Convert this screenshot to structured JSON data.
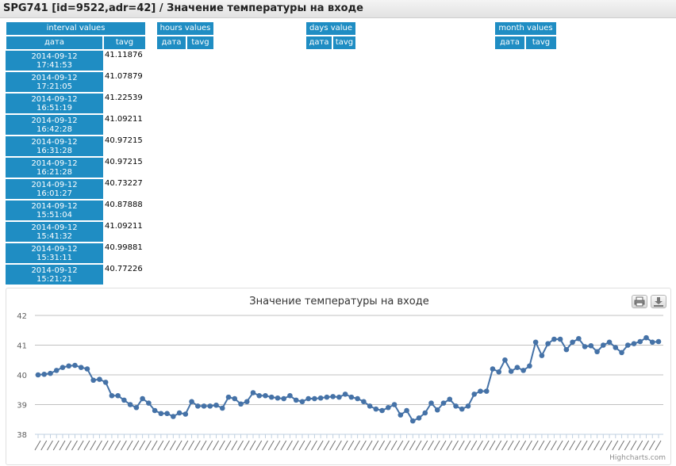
{
  "window": {
    "title": "SPG741 [id=9522,adr=42] / Значение температуры на входе"
  },
  "interval": {
    "title": "interval values",
    "col_date": "дата",
    "col_value": "tavg",
    "rows": [
      {
        "date": "2014-09-12",
        "time": "17:41:53",
        "value": "41.11876"
      },
      {
        "date": "2014-09-12",
        "time": "17:21:05",
        "value": "41.07879"
      },
      {
        "date": "2014-09-12",
        "time": "16:51:19",
        "value": "41.22539"
      },
      {
        "date": "2014-09-12",
        "time": "16:42:28",
        "value": "41.09211"
      },
      {
        "date": "2014-09-12",
        "time": "16:31:28",
        "value": "40.97215"
      },
      {
        "date": "2014-09-12",
        "time": "16:21:28",
        "value": "40.97215"
      },
      {
        "date": "2014-09-12",
        "time": "16:01:27",
        "value": "40.73227"
      },
      {
        "date": "2014-09-12",
        "time": "15:51:04",
        "value": "40.87888"
      },
      {
        "date": "2014-09-12",
        "time": "15:41:32",
        "value": "41.09211"
      },
      {
        "date": "2014-09-12",
        "time": "15:31:11",
        "value": "40.99881"
      },
      {
        "date": "2014-09-12",
        "time": "15:21:21",
        "value": "40.77226"
      }
    ]
  },
  "hours": {
    "title": "hours values",
    "col_date": "дата",
    "col_value": "tavg"
  },
  "days": {
    "title": "days value",
    "col_date": "дата",
    "col_value": "tavg"
  },
  "month": {
    "title": "month values",
    "col_date": "дата",
    "col_value": "tavg"
  },
  "chart_data": {
    "type": "line",
    "title": "Значение температуры на входе",
    "ylim": [
      38,
      42
    ],
    "yticks": [
      "38",
      "39",
      "40",
      "41",
      "42"
    ],
    "grid": true,
    "legend": "none",
    "color": "#4572a7",
    "x_tick_labels": "rotated, illegible",
    "values": [
      40.0,
      40.02,
      40.05,
      40.15,
      40.25,
      40.3,
      40.32,
      40.25,
      40.2,
      39.82,
      39.85,
      39.75,
      39.3,
      39.3,
      39.15,
      39.0,
      38.9,
      39.2,
      39.05,
      38.8,
      38.7,
      38.7,
      38.6,
      38.72,
      38.68,
      39.1,
      38.95,
      38.95,
      38.95,
      38.98,
      38.88,
      39.25,
      39.2,
      39.02,
      39.1,
      39.4,
      39.3,
      39.3,
      39.25,
      39.22,
      39.2,
      39.3,
      39.15,
      39.1,
      39.2,
      39.2,
      39.22,
      39.25,
      39.27,
      39.25,
      39.35,
      39.25,
      39.2,
      39.1,
      38.95,
      38.85,
      38.8,
      38.9,
      39.0,
      38.65,
      38.8,
      38.45,
      38.55,
      38.72,
      39.05,
      38.82,
      39.05,
      39.18,
      38.95,
      38.85,
      38.95,
      39.35,
      39.45,
      39.45,
      40.2,
      40.1,
      40.5,
      40.12,
      40.25,
      40.15,
      40.3,
      41.1,
      40.65,
      41.05,
      41.2,
      41.2,
      40.85,
      41.1,
      41.22,
      40.95,
      40.98,
      40.78,
      41.0,
      41.1,
      40.92,
      40.75,
      41.0,
      41.05,
      41.12,
      41.25,
      41.1,
      41.12
    ],
    "credit": "Highcharts.com"
  },
  "icons": {
    "print": "print-icon",
    "download": "download-icon"
  }
}
